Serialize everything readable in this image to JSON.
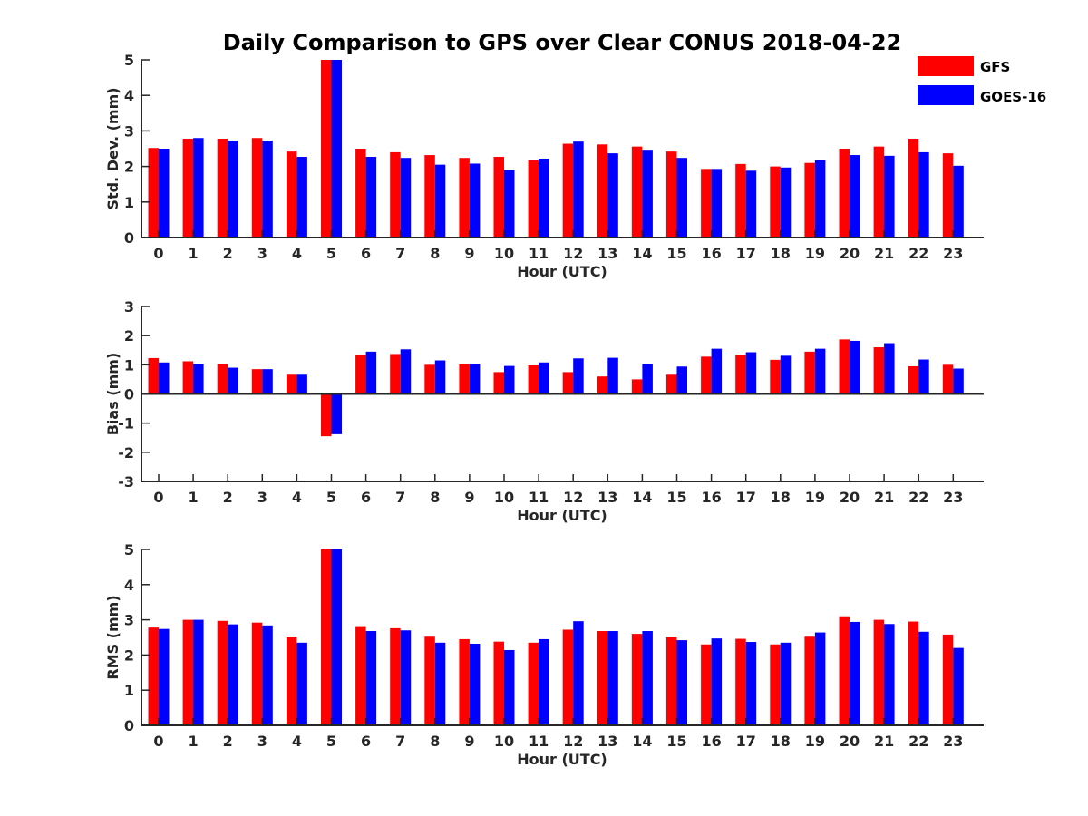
{
  "colors": {
    "gfs": "#ff0000",
    "goes": "#0000ff",
    "axis": "#262626"
  },
  "chart_data": {
    "title": "Daily Comparison to GPS over Clear CONUS 2018-04-22",
    "type": "bar",
    "legend": {
      "placement": "top-right",
      "entries": [
        "GFS",
        "GOES-16"
      ]
    },
    "categories": [
      "0",
      "1",
      "2",
      "3",
      "4",
      "5",
      "6",
      "7",
      "8",
      "9",
      "10",
      "11",
      "12",
      "13",
      "14",
      "15",
      "16",
      "17",
      "18",
      "19",
      "20",
      "21",
      "22",
      "23"
    ],
    "panels": [
      {
        "type": "bar",
        "xlabel": "Hour (UTC)",
        "ylabel": "Std. Dev. (mm)",
        "ylim": [
          0,
          5
        ],
        "yticks": [
          "0",
          "1",
          "2",
          "3",
          "4",
          "5"
        ],
        "series": [
          {
            "name": "GFS",
            "values": [
              2.52,
              2.78,
              2.78,
              2.8,
              2.42,
              5.0,
              2.5,
              2.4,
              2.32,
              2.24,
              2.27,
              2.17,
              2.64,
              2.62,
              2.56,
              2.42,
              1.93,
              2.07,
              2.0,
              2.1,
              2.5,
              2.56,
              2.78,
              2.37
            ]
          },
          {
            "name": "GOES-16",
            "values": [
              2.5,
              2.8,
              2.73,
              2.73,
              2.27,
              5.0,
              2.27,
              2.24,
              2.05,
              2.08,
              1.9,
              2.22,
              2.7,
              2.37,
              2.47,
              2.24,
              1.93,
              1.88,
              1.97,
              2.17,
              2.32,
              2.3,
              2.4,
              2.02
            ]
          }
        ]
      },
      {
        "type": "bar",
        "xlabel": "Hour (UTC)",
        "ylabel": "Bias (mm)",
        "ylim": [
          -3,
          3
        ],
        "yticks": [
          "-3",
          "-2",
          "-1",
          "0",
          "1",
          "2",
          "3"
        ],
        "series": [
          {
            "name": "GFS",
            "values": [
              1.23,
              1.12,
              1.03,
              0.85,
              0.66,
              -1.45,
              1.33,
              1.37,
              1.0,
              1.03,
              0.75,
              0.98,
              0.75,
              0.6,
              0.5,
              0.66,
              1.28,
              1.35,
              1.17,
              1.45,
              1.87,
              1.6,
              0.95,
              1.0
            ]
          },
          {
            "name": "GOES-16",
            "values": [
              1.08,
              1.03,
              0.9,
              0.85,
              0.66,
              -1.38,
              1.45,
              1.53,
              1.15,
              1.03,
              0.96,
              1.08,
              1.22,
              1.24,
              1.03,
              0.94,
              1.55,
              1.43,
              1.31,
              1.55,
              1.82,
              1.74,
              1.18,
              0.87
            ]
          }
        ]
      },
      {
        "type": "bar",
        "xlabel": "Hour (UTC)",
        "ylabel": "RMS (mm)",
        "ylim": [
          0,
          5
        ],
        "yticks": [
          "0",
          "1",
          "2",
          "3",
          "4",
          "5"
        ],
        "series": [
          {
            "name": "GFS",
            "values": [
              2.78,
              3.0,
              2.97,
              2.92,
              2.5,
              5.0,
              2.82,
              2.76,
              2.52,
              2.45,
              2.38,
              2.35,
              2.72,
              2.68,
              2.6,
              2.5,
              2.3,
              2.46,
              2.3,
              2.52,
              3.1,
              3.0,
              2.95,
              2.58
            ]
          },
          {
            "name": "GOES-16",
            "values": [
              2.74,
              3.0,
              2.87,
              2.84,
              2.35,
              5.0,
              2.68,
              2.7,
              2.35,
              2.32,
              2.14,
              2.45,
              2.96,
              2.68,
              2.68,
              2.42,
              2.47,
              2.37,
              2.35,
              2.64,
              2.94,
              2.88,
              2.66,
              2.2
            ]
          }
        ]
      }
    ]
  }
}
